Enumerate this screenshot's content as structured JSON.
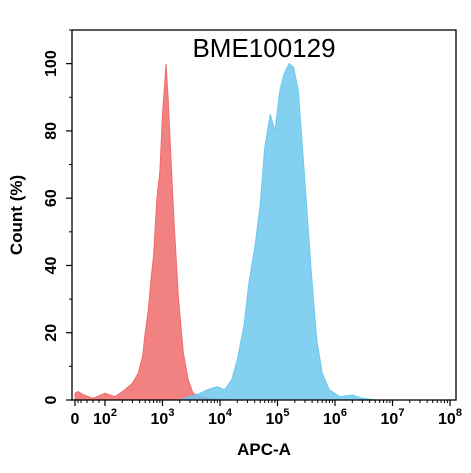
{
  "chart_data": {
    "type": "area",
    "title": "BME100129",
    "xlabel": "APC-A",
    "ylabel": "Count  (%)",
    "x_scale": "biexponential",
    "xlim": [
      0,
      100000000
    ],
    "ylim": [
      0,
      110
    ],
    "x_ticks": [
      {
        "value": 0,
        "base": "0",
        "exp": ""
      },
      {
        "value": 100,
        "base": "10",
        "exp": "2"
      },
      {
        "value": 1000,
        "base": "10",
        "exp": "3"
      },
      {
        "value": 10000,
        "base": "10",
        "exp": "4"
      },
      {
        "value": 100000,
        "base": "10",
        "exp": "5"
      },
      {
        "value": 1000000,
        "base": "10",
        "exp": "6"
      },
      {
        "value": 10000000,
        "base": "10",
        "exp": "7"
      },
      {
        "value": 100000000,
        "base": "10",
        "exp": "8"
      }
    ],
    "y_ticks": [
      "0",
      "20",
      "40",
      "60",
      "80",
      "100"
    ],
    "grid": false,
    "series": [
      {
        "color": "#f06b6b",
        "points": [
          [
            0,
            2
          ],
          [
            10,
            2.5
          ],
          [
            30,
            1.5
          ],
          [
            60,
            0.5
          ],
          [
            100,
            2
          ],
          [
            150,
            1
          ],
          [
            220,
            3
          ],
          [
            300,
            5
          ],
          [
            380,
            8
          ],
          [
            450,
            13
          ],
          [
            500,
            20
          ],
          [
            560,
            26
          ],
          [
            640,
            37
          ],
          [
            700,
            43
          ],
          [
            800,
            60
          ],
          [
            900,
            68
          ],
          [
            1000,
            85
          ],
          [
            1100,
            95
          ],
          [
            1150,
            100
          ],
          [
            1250,
            90
          ],
          [
            1400,
            72
          ],
          [
            1600,
            52
          ],
          [
            1900,
            30
          ],
          [
            2300,
            14
          ],
          [
            2800,
            6
          ],
          [
            3400,
            2
          ],
          [
            4500,
            1
          ],
          [
            6500,
            0.5
          ],
          [
            10000,
            0.3
          ],
          [
            20000,
            0
          ]
        ]
      },
      {
        "color": "#6ec8ee",
        "points": [
          [
            2000,
            0
          ],
          [
            3000,
            1
          ],
          [
            4500,
            2
          ],
          [
            6000,
            3
          ],
          [
            9000,
            4
          ],
          [
            12000,
            3
          ],
          [
            16000,
            6
          ],
          [
            20000,
            12
          ],
          [
            26000,
            22
          ],
          [
            32000,
            35
          ],
          [
            40000,
            45
          ],
          [
            50000,
            58
          ],
          [
            60000,
            75
          ],
          [
            75000,
            85
          ],
          [
            90000,
            80
          ],
          [
            110000,
            92
          ],
          [
            130000,
            97
          ],
          [
            160000,
            100
          ],
          [
            190000,
            99
          ],
          [
            230000,
            92
          ],
          [
            300000,
            65
          ],
          [
            380000,
            40
          ],
          [
            480000,
            18
          ],
          [
            600000,
            8
          ],
          [
            800000,
            3
          ],
          [
            1200000,
            1
          ],
          [
            2000000,
            1.5
          ],
          [
            3000000,
            0.5
          ],
          [
            5000000,
            0
          ]
        ]
      }
    ]
  }
}
